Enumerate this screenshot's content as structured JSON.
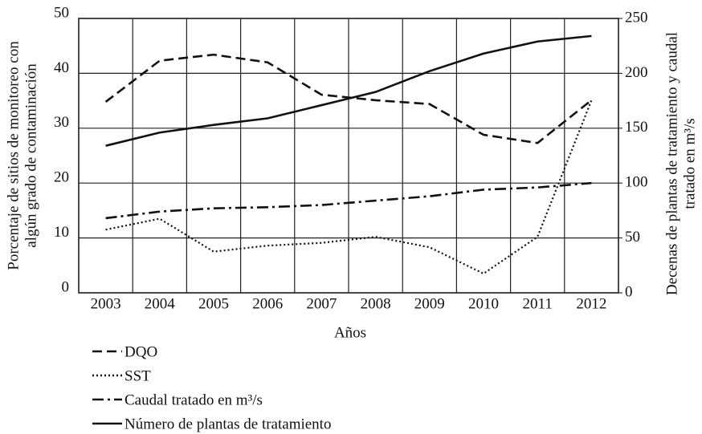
{
  "chart_data": {
    "type": "line",
    "xlabel": "Años",
    "ylabel": [
      "Porcentaje de sitios de monitoreo con",
      "algún grado de contaminación"
    ],
    "y2label": [
      "Decenas de plantas de tratamiento y caudal",
      "tratado en m³/s"
    ],
    "categories": [
      "2003",
      "2004",
      "2005",
      "2006",
      "2007",
      "2008",
      "2009",
      "2010",
      "2011",
      "2012"
    ],
    "ylim": [
      0,
      50
    ],
    "yticks": [
      0,
      10,
      20,
      30,
      40,
      50
    ],
    "y2lim": [
      0,
      250
    ],
    "y2ticks": [
      0,
      50,
      100,
      150,
      200,
      250
    ],
    "grid": true,
    "series": [
      {
        "name": "DQO",
        "color": "#111111",
        "dash": "dashed",
        "values": [
          34.8,
          42.3,
          43.4,
          42,
          36.1,
          35.1,
          34.4,
          28.8,
          27.3,
          35.1
        ]
      },
      {
        "name": "SST",
        "color": "#111111",
        "dash": "dotted",
        "values": [
          11.5,
          13.5,
          7.5,
          8.6,
          9.1,
          10.2,
          8.3,
          3.5,
          10.2,
          35.1
        ]
      },
      {
        "name": "Caudal tratado en m³/s",
        "color": "#111111",
        "dash": "dashdot",
        "axis": "y2",
        "values": [
          68,
          74,
          77,
          78,
          80,
          84,
          88,
          94,
          96,
          100
        ]
      },
      {
        "name": "Número de plantas de tratamiento",
        "color": "#111111",
        "dash": "solid",
        "axis": "y2",
        "values": [
          134,
          146,
          153,
          159,
          171,
          183,
          202,
          218,
          229,
          234
        ]
      }
    ]
  }
}
